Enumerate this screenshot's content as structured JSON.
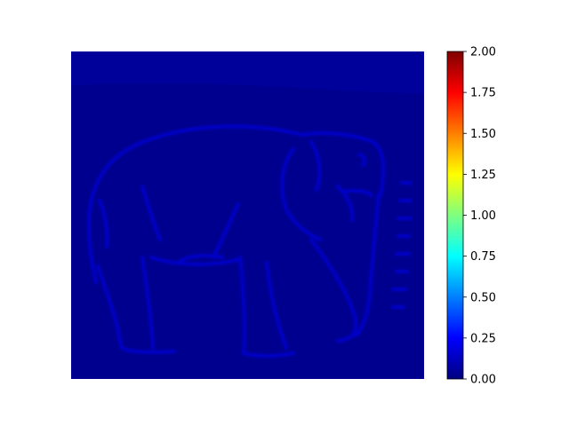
{
  "chart_data": {
    "type": "heatmap",
    "title": "",
    "xlabel": "",
    "ylabel": "",
    "axes_visible": false,
    "colormap": "jet",
    "image_description_value_range": [
      0.0,
      0.3
    ],
    "background_value": 0.05,
    "edge_value": 0.2,
    "colorbar": {
      "vmin": 0.0,
      "vmax": 2.0,
      "ticks": [
        0.0,
        0.25,
        0.5,
        0.75,
        1.0,
        1.25,
        1.5,
        1.75,
        2.0
      ],
      "tick_labels": [
        "0.00",
        "0.25",
        "0.50",
        "0.75",
        "1.00",
        "1.25",
        "1.50",
        "1.75",
        "2.00"
      ],
      "position": "right"
    }
  },
  "colors": {
    "jet_stops": [
      "#00007f",
      "#0000ff",
      "#007fff",
      "#00ffff",
      "#7fff7f",
      "#ffff00",
      "#ff7f00",
      "#ff0000",
      "#7f0000"
    ],
    "background": "#00008f",
    "edge": "#0000c8",
    "band": "#0000a4"
  }
}
